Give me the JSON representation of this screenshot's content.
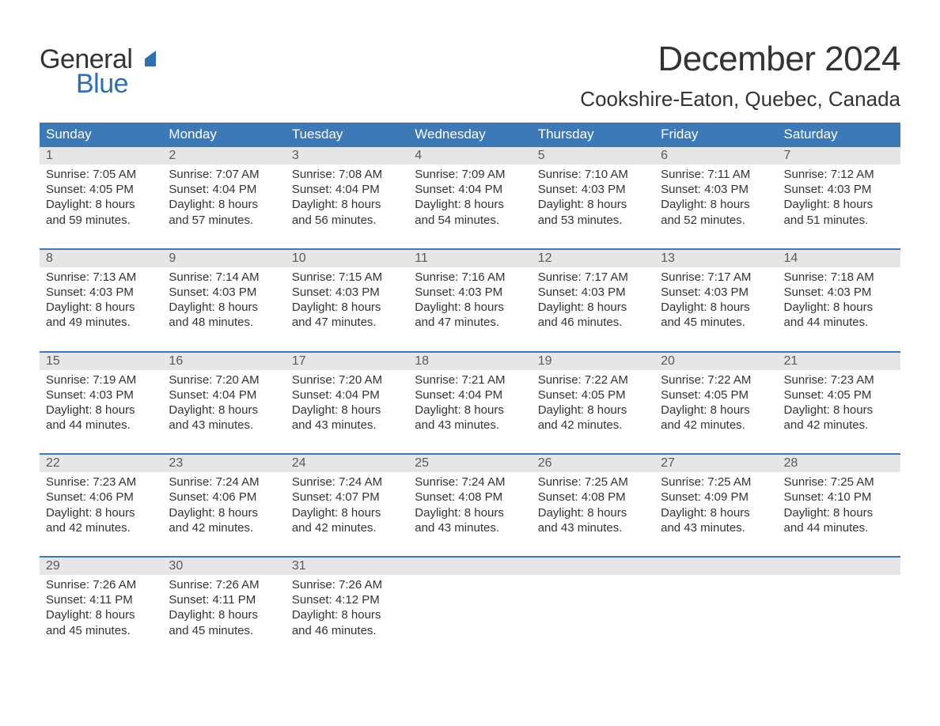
{
  "logo": {
    "text_general": "General",
    "text_blue": "Blue",
    "sail_color": "#2f6fb0",
    "general_color": "#333333",
    "blue_color": "#2f6fb0"
  },
  "header": {
    "month_title": "December 2024",
    "location": "Cookshire-Eaton, Quebec, Canada"
  },
  "colors": {
    "header_bg": "#3c79b6",
    "header_text": "#ffffff",
    "daynum_bg": "#e6e6e6",
    "daynum_text": "#5a5a5a",
    "rule": "#3c79b6",
    "body_text": "#333333",
    "page_bg": "#ffffff"
  },
  "typography": {
    "month_title_fontsize": 44,
    "location_fontsize": 26,
    "dow_fontsize": 17,
    "daynum_fontsize": 16,
    "detail_fontsize": 15
  },
  "calendar": {
    "type": "table",
    "columns": [
      "Sunday",
      "Monday",
      "Tuesday",
      "Wednesday",
      "Thursday",
      "Friday",
      "Saturday"
    ],
    "weeks": [
      [
        {
          "day": "1",
          "sunrise": "Sunrise: 7:05 AM",
          "sunset": "Sunset: 4:05 PM",
          "dl1": "Daylight: 8 hours",
          "dl2": "and 59 minutes."
        },
        {
          "day": "2",
          "sunrise": "Sunrise: 7:07 AM",
          "sunset": "Sunset: 4:04 PM",
          "dl1": "Daylight: 8 hours",
          "dl2": "and 57 minutes."
        },
        {
          "day": "3",
          "sunrise": "Sunrise: 7:08 AM",
          "sunset": "Sunset: 4:04 PM",
          "dl1": "Daylight: 8 hours",
          "dl2": "and 56 minutes."
        },
        {
          "day": "4",
          "sunrise": "Sunrise: 7:09 AM",
          "sunset": "Sunset: 4:04 PM",
          "dl1": "Daylight: 8 hours",
          "dl2": "and 54 minutes."
        },
        {
          "day": "5",
          "sunrise": "Sunrise: 7:10 AM",
          "sunset": "Sunset: 4:03 PM",
          "dl1": "Daylight: 8 hours",
          "dl2": "and 53 minutes."
        },
        {
          "day": "6",
          "sunrise": "Sunrise: 7:11 AM",
          "sunset": "Sunset: 4:03 PM",
          "dl1": "Daylight: 8 hours",
          "dl2": "and 52 minutes."
        },
        {
          "day": "7",
          "sunrise": "Sunrise: 7:12 AM",
          "sunset": "Sunset: 4:03 PM",
          "dl1": "Daylight: 8 hours",
          "dl2": "and 51 minutes."
        }
      ],
      [
        {
          "day": "8",
          "sunrise": "Sunrise: 7:13 AM",
          "sunset": "Sunset: 4:03 PM",
          "dl1": "Daylight: 8 hours",
          "dl2": "and 49 minutes."
        },
        {
          "day": "9",
          "sunrise": "Sunrise: 7:14 AM",
          "sunset": "Sunset: 4:03 PM",
          "dl1": "Daylight: 8 hours",
          "dl2": "and 48 minutes."
        },
        {
          "day": "10",
          "sunrise": "Sunrise: 7:15 AM",
          "sunset": "Sunset: 4:03 PM",
          "dl1": "Daylight: 8 hours",
          "dl2": "and 47 minutes."
        },
        {
          "day": "11",
          "sunrise": "Sunrise: 7:16 AM",
          "sunset": "Sunset: 4:03 PM",
          "dl1": "Daylight: 8 hours",
          "dl2": "and 47 minutes."
        },
        {
          "day": "12",
          "sunrise": "Sunrise: 7:17 AM",
          "sunset": "Sunset: 4:03 PM",
          "dl1": "Daylight: 8 hours",
          "dl2": "and 46 minutes."
        },
        {
          "day": "13",
          "sunrise": "Sunrise: 7:17 AM",
          "sunset": "Sunset: 4:03 PM",
          "dl1": "Daylight: 8 hours",
          "dl2": "and 45 minutes."
        },
        {
          "day": "14",
          "sunrise": "Sunrise: 7:18 AM",
          "sunset": "Sunset: 4:03 PM",
          "dl1": "Daylight: 8 hours",
          "dl2": "and 44 minutes."
        }
      ],
      [
        {
          "day": "15",
          "sunrise": "Sunrise: 7:19 AM",
          "sunset": "Sunset: 4:03 PM",
          "dl1": "Daylight: 8 hours",
          "dl2": "and 44 minutes."
        },
        {
          "day": "16",
          "sunrise": "Sunrise: 7:20 AM",
          "sunset": "Sunset: 4:04 PM",
          "dl1": "Daylight: 8 hours",
          "dl2": "and 43 minutes."
        },
        {
          "day": "17",
          "sunrise": "Sunrise: 7:20 AM",
          "sunset": "Sunset: 4:04 PM",
          "dl1": "Daylight: 8 hours",
          "dl2": "and 43 minutes."
        },
        {
          "day": "18",
          "sunrise": "Sunrise: 7:21 AM",
          "sunset": "Sunset: 4:04 PM",
          "dl1": "Daylight: 8 hours",
          "dl2": "and 43 minutes."
        },
        {
          "day": "19",
          "sunrise": "Sunrise: 7:22 AM",
          "sunset": "Sunset: 4:05 PM",
          "dl1": "Daylight: 8 hours",
          "dl2": "and 42 minutes."
        },
        {
          "day": "20",
          "sunrise": "Sunrise: 7:22 AM",
          "sunset": "Sunset: 4:05 PM",
          "dl1": "Daylight: 8 hours",
          "dl2": "and 42 minutes."
        },
        {
          "day": "21",
          "sunrise": "Sunrise: 7:23 AM",
          "sunset": "Sunset: 4:05 PM",
          "dl1": "Daylight: 8 hours",
          "dl2": "and 42 minutes."
        }
      ],
      [
        {
          "day": "22",
          "sunrise": "Sunrise: 7:23 AM",
          "sunset": "Sunset: 4:06 PM",
          "dl1": "Daylight: 8 hours",
          "dl2": "and 42 minutes."
        },
        {
          "day": "23",
          "sunrise": "Sunrise: 7:24 AM",
          "sunset": "Sunset: 4:06 PM",
          "dl1": "Daylight: 8 hours",
          "dl2": "and 42 minutes."
        },
        {
          "day": "24",
          "sunrise": "Sunrise: 7:24 AM",
          "sunset": "Sunset: 4:07 PM",
          "dl1": "Daylight: 8 hours",
          "dl2": "and 42 minutes."
        },
        {
          "day": "25",
          "sunrise": "Sunrise: 7:24 AM",
          "sunset": "Sunset: 4:08 PM",
          "dl1": "Daylight: 8 hours",
          "dl2": "and 43 minutes."
        },
        {
          "day": "26",
          "sunrise": "Sunrise: 7:25 AM",
          "sunset": "Sunset: 4:08 PM",
          "dl1": "Daylight: 8 hours",
          "dl2": "and 43 minutes."
        },
        {
          "day": "27",
          "sunrise": "Sunrise: 7:25 AM",
          "sunset": "Sunset: 4:09 PM",
          "dl1": "Daylight: 8 hours",
          "dl2": "and 43 minutes."
        },
        {
          "day": "28",
          "sunrise": "Sunrise: 7:25 AM",
          "sunset": "Sunset: 4:10 PM",
          "dl1": "Daylight: 8 hours",
          "dl2": "and 44 minutes."
        }
      ],
      [
        {
          "day": "29",
          "sunrise": "Sunrise: 7:26 AM",
          "sunset": "Sunset: 4:11 PM",
          "dl1": "Daylight: 8 hours",
          "dl2": "and 45 minutes."
        },
        {
          "day": "30",
          "sunrise": "Sunrise: 7:26 AM",
          "sunset": "Sunset: 4:11 PM",
          "dl1": "Daylight: 8 hours",
          "dl2": "and 45 minutes."
        },
        {
          "day": "31",
          "sunrise": "Sunrise: 7:26 AM",
          "sunset": "Sunset: 4:12 PM",
          "dl1": "Daylight: 8 hours",
          "dl2": "and 46 minutes."
        },
        null,
        null,
        null,
        null
      ]
    ]
  }
}
